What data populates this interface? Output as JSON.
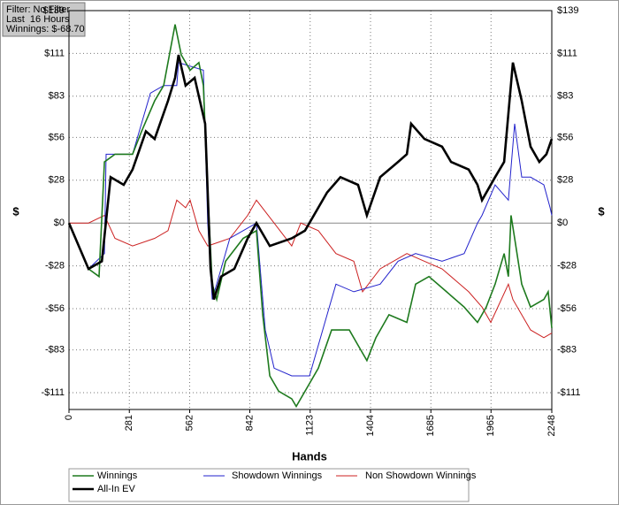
{
  "chart_data": {
    "type": "line",
    "info": [
      "Filter: No Filter",
      "Last  16 Hours",
      "Winnings: $-68.70"
    ],
    "x_label": "Hands",
    "y_label": "$",
    "y2_label": "$",
    "xlim": [
      0,
      2248
    ],
    "xticks": [
      0,
      281,
      562,
      842,
      1123,
      1404,
      1685,
      1965,
      2248
    ],
    "ylim": [
      -122,
      139
    ],
    "yticks": [
      {
        "value": -111,
        "label": "-$111"
      },
      {
        "value": -83,
        "label": "-$83"
      },
      {
        "value": -56,
        "label": "-$56"
      },
      {
        "value": -28,
        "label": "-$28"
      },
      {
        "value": 0,
        "label": "$0"
      },
      {
        "value": 28,
        "label": "$28"
      },
      {
        "value": 56,
        "label": "$56"
      },
      {
        "value": 83,
        "label": "$83"
      },
      {
        "value": 111,
        "label": "$111"
      },
      {
        "value": 139,
        "label": "$139"
      }
    ],
    "grid": true,
    "series": [
      {
        "name": "Winnings",
        "color": "#1e7a1e",
        "x": [
          0,
          91,
          140,
          165,
          214,
          296,
          338,
          399,
          441,
          494,
          523,
          564,
          605,
          626,
          646,
          667,
          688,
          729,
          811,
          873,
          902,
          935,
          976,
          1037,
          1058,
          1120,
          1161,
          1223,
          1305,
          1346,
          1387,
          1429,
          1490,
          1573,
          1614,
          1676,
          1758,
          1840,
          1902,
          1943,
          1984,
          2026,
          2046,
          2058,
          2075,
          2108,
          2149,
          2211,
          2231,
          2248
        ],
        "values": [
          0,
          -30,
          -35,
          40,
          45,
          45,
          60,
          80,
          90,
          130,
          110,
          100,
          105,
          90,
          20,
          -40,
          -50,
          -25,
          -10,
          -5,
          -60,
          -100,
          -110,
          -115,
          -120,
          -105,
          -95,
          -70,
          -70,
          -80,
          -90,
          -75,
          -60,
          -65,
          -40,
          -35,
          -45,
          -55,
          -65,
          -55,
          -40,
          -20,
          -35,
          5,
          -10,
          -40,
          -55,
          -50,
          -45,
          -68.7
        ]
      },
      {
        "name": "Showdown Winnings",
        "color": "#2222cc",
        "x": [
          0,
          91,
          165,
          173,
          296,
          379,
          441,
          502,
          510,
          626,
          646,
          667,
          749,
          873,
          914,
          955,
          1037,
          1120,
          1202,
          1243,
          1326,
          1449,
          1532,
          1614,
          1737,
          1840,
          1902,
          1923,
          1984,
          2046,
          2075,
          2108,
          2149,
          2211,
          2240,
          2248
        ],
        "values": [
          0,
          -30,
          -20,
          45,
          45,
          85,
          90,
          90,
          105,
          100,
          0,
          -50,
          -10,
          0,
          -70,
          -95,
          -100,
          -100,
          -60,
          -40,
          -45,
          -40,
          -25,
          -20,
          -25,
          -20,
          0,
          5,
          25,
          15,
          65,
          30,
          30,
          25,
          10,
          5
        ]
      },
      {
        "name": "Non Showdown Winnings",
        "color": "#cc2222",
        "x": [
          0,
          91,
          165,
          214,
          296,
          399,
          461,
          502,
          543,
          564,
          605,
          646,
          749,
          832,
          873,
          955,
          1037,
          1079,
          1161,
          1243,
          1326,
          1367,
          1449,
          1573,
          1655,
          1737,
          1820,
          1861,
          1923,
          1964,
          2046,
          2067,
          2108,
          2149,
          2211,
          2248
        ],
        "values": [
          0,
          0,
          5,
          -10,
          -15,
          -10,
          -5,
          15,
          10,
          15,
          -5,
          -15,
          -10,
          5,
          15,
          0,
          -15,
          0,
          -5,
          -20,
          -25,
          -45,
          -30,
          -20,
          -25,
          -30,
          -40,
          -45,
          -55,
          -65,
          -40,
          -50,
          -60,
          -70,
          -75,
          -72
        ]
      },
      {
        "name": "All-In EV",
        "color": "#000000",
        "x": [
          0,
          91,
          153,
          194,
          255,
          296,
          358,
          399,
          461,
          494,
          510,
          543,
          585,
          634,
          659,
          675,
          708,
          770,
          832,
          873,
          935,
          1037,
          1099,
          1202,
          1264,
          1346,
          1387,
          1449,
          1532,
          1573,
          1593,
          1655,
          1737,
          1779,
          1861,
          1902,
          1923,
          1984,
          2026,
          2067,
          2108,
          2149,
          2190,
          2223,
          2248
        ],
        "values": [
          0,
          -30,
          -25,
          30,
          25,
          35,
          60,
          55,
          80,
          95,
          110,
          90,
          95,
          65,
          -30,
          -50,
          -35,
          -30,
          -10,
          0,
          -15,
          -10,
          -5,
          20,
          30,
          25,
          5,
          30,
          40,
          45,
          65,
          55,
          50,
          40,
          35,
          25,
          15,
          30,
          40,
          105,
          80,
          50,
          40,
          45,
          55
        ]
      }
    ]
  }
}
